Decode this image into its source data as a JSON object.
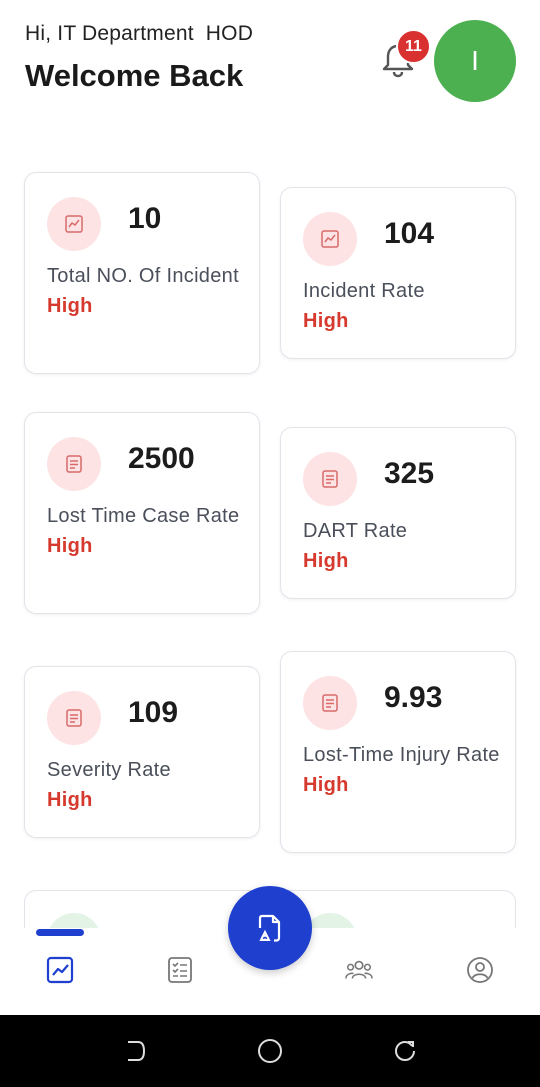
{
  "header": {
    "greeting": "Hi, IT Department  HOD",
    "welcome": "Welcome Back",
    "notification_count": "11",
    "avatar_initial": "I"
  },
  "cards": [
    {
      "value": "10",
      "label": "Total NO. Of Incident",
      "level": "High",
      "icon": "chart-line-icon"
    },
    {
      "value": "104",
      "label": "Incident Rate",
      "level": "High",
      "icon": "chart-line-icon"
    },
    {
      "value": "2500",
      "label": "Lost Time Case Rate",
      "level": "High",
      "icon": "document-list-icon"
    },
    {
      "value": "325",
      "label": "DART Rate",
      "level": "High",
      "icon": "document-list-icon"
    },
    {
      "value": "109",
      "label": "Severity Rate",
      "level": "High",
      "icon": "document-list-icon"
    },
    {
      "value": "9.93",
      "label": "Lost-Time Injury Rate",
      "level": "High",
      "icon": "document-list-icon"
    }
  ],
  "bottom_nav": {
    "items": [
      "dashboard-icon",
      "checklist-icon",
      "report-incident-icon",
      "team-icon",
      "profile-icon"
    ],
    "active": "dashboard-icon"
  },
  "colors": {
    "accent": "#1f3fcf",
    "level_high": "#d63a2f",
    "icon_bg": "#fde3e3",
    "avatar_bg": "#4caf50",
    "badge": "#d93030"
  }
}
